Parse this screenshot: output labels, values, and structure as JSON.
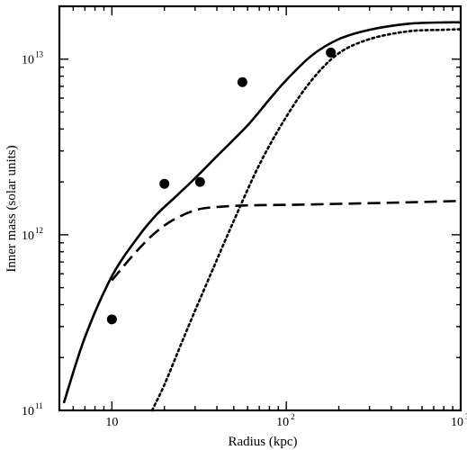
{
  "chart_data": {
    "type": "line",
    "title": "",
    "xlabel": "Radius (kpc)",
    "ylabel": "Inner mass (solar units)",
    "x_scale": "log",
    "y_scale": "log",
    "xlim": [
      5,
      1000
    ],
    "ylim": [
      100000000000,
      20000000000000
    ],
    "grid": false,
    "x_ticks": [
      {
        "value": 10,
        "label": "10",
        "exp": ""
      },
      {
        "value": 100,
        "label": "10",
        "exp": "2"
      },
      {
        "value": 1000,
        "label": "10",
        "exp": "3"
      }
    ],
    "y_ticks": [
      {
        "value": 100000000000,
        "label": "10",
        "exp": "11"
      },
      {
        "value": 1000000000000,
        "label": "10",
        "exp": "12"
      },
      {
        "value": 10000000000000,
        "label": "10",
        "exp": "13"
      }
    ],
    "series": [
      {
        "style": "solid",
        "x": [
          5.3,
          7,
          10,
          14,
          18,
          24,
          30,
          40,
          60,
          80,
          100,
          140,
          200,
          300,
          500,
          800,
          1000
        ],
        "y": [
          110000000000,
          260000000000,
          580000000000,
          960000000000,
          1300000000000,
          1700000000000,
          2100000000000,
          2800000000000,
          4200000000000,
          5900000000000,
          7600000000000,
          10500000000000,
          13000000000000,
          14700000000000,
          15900000000000,
          16200000000000,
          16200000000000
        ]
      },
      {
        "style": "dashed",
        "x": [
          10,
          13,
          17,
          22,
          30,
          40,
          60,
          100,
          200,
          500,
          1000
        ],
        "y": [
          550000000000,
          750000000000,
          990000000000,
          1200000000000,
          1380000000000,
          1440000000000,
          1470000000000,
          1480000000000,
          1500000000000,
          1530000000000,
          1560000000000
        ]
      },
      {
        "style": "dotted",
        "x": [
          17,
          20,
          25,
          30,
          40,
          50,
          70,
          100,
          140,
          200,
          300,
          500,
          800,
          1000
        ],
        "y": [
          100000000000,
          140000000000,
          240000000000,
          370000000000,
          720000000000,
          1200000000000,
          2500000000000,
          4700000000000,
          7600000000000,
          10800000000000,
          13000000000000,
          14400000000000,
          14700000000000,
          14800000000000
        ]
      }
    ],
    "points": [
      {
        "x": 10,
        "y": 330000000000
      },
      {
        "x": 20,
        "y": 1950000000000
      },
      {
        "x": 32,
        "y": 2000000000000
      },
      {
        "x": 56,
        "y": 7400000000000
      },
      {
        "x": 180,
        "y": 10900000000000
      }
    ]
  }
}
